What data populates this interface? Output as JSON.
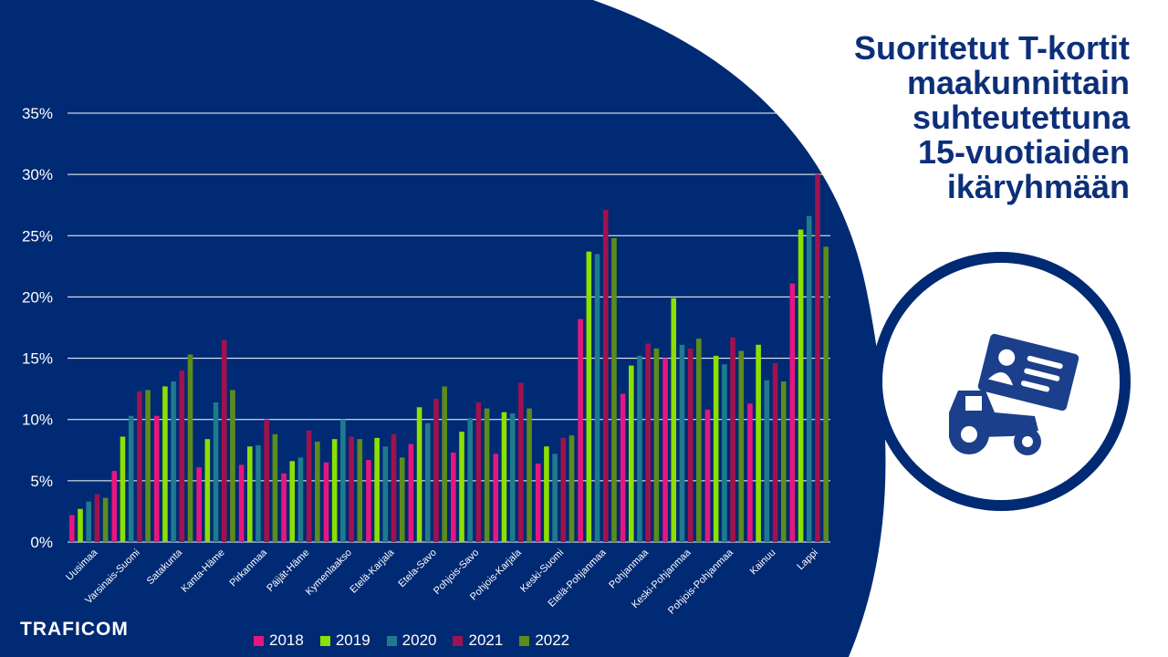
{
  "title_lines": [
    "Suoritetut T-kortit",
    "maakunnittain",
    "suhteutettuna",
    "15-vuotiaiden",
    "ikäryhmään"
  ],
  "logo": "TRAFICOM",
  "icons": [
    "tractor-icon",
    "id-card-icon"
  ],
  "colors": {
    "background_dark": "#002a73",
    "title_text": "#0d2f7a",
    "grid": "#ffffff"
  },
  "chart_data": {
    "type": "bar",
    "categories": [
      "Uusimaa",
      "Varsinais-Suomi",
      "Satakunta",
      "Kanta-Häme",
      "Pirkanmaa",
      "Päijät-Häme",
      "Kymenlaakso",
      "Etelä-Karjala",
      "Etela-Savo",
      "Pohjois-Savo",
      "Pohjois-Karjala",
      "Keski-Suomi",
      "Etelä-Pohjanmaa",
      "Pohjanmaa",
      "Keski-Pohjanmaa",
      "Pohjois-Pohjanmaa",
      "Kainuu",
      "Lappi"
    ],
    "series": [
      {
        "name": "2018",
        "color": "#e5177f",
        "values": [
          2.2,
          5.8,
          10.3,
          6.1,
          6.3,
          5.6,
          6.5,
          6.7,
          8.0,
          7.3,
          7.2,
          6.4,
          18.2,
          12.1,
          15.0,
          10.8,
          11.3,
          21.1
        ]
      },
      {
        "name": "2019",
        "color": "#8ce000",
        "values": [
          2.7,
          8.6,
          12.7,
          8.4,
          7.8,
          6.6,
          8.4,
          8.5,
          11.0,
          9.0,
          10.6,
          7.8,
          23.7,
          14.4,
          19.9,
          15.2,
          16.1,
          25.5
        ]
      },
      {
        "name": "2020",
        "color": "#1e7b8e",
        "values": [
          3.3,
          10.3,
          13.1,
          11.4,
          7.9,
          6.9,
          10.0,
          7.8,
          9.7,
          10.1,
          10.5,
          7.2,
          23.5,
          15.2,
          16.1,
          14.5,
          13.2,
          26.6
        ]
      },
      {
        "name": "2021",
        "color": "#a0124e",
        "values": [
          3.9,
          12.3,
          14.0,
          16.5,
          10.0,
          9.1,
          8.6,
          8.8,
          11.7,
          11.4,
          13.0,
          8.5,
          27.1,
          16.2,
          15.8,
          16.7,
          14.6,
          30.0
        ]
      },
      {
        "name": "2022",
        "color": "#5d8c1c",
        "values": [
          3.6,
          12.4,
          15.3,
          12.4,
          8.8,
          8.2,
          8.4,
          6.9,
          12.7,
          10.9,
          10.9,
          8.7,
          24.8,
          15.8,
          16.6,
          15.6,
          13.1,
          24.1
        ]
      }
    ],
    "y_ticks": [
      "0%",
      "5%",
      "10%",
      "15%",
      "20%",
      "25%",
      "30%",
      "35%"
    ],
    "ylim": [
      0,
      35
    ],
    "grid": true,
    "legend_position": "bottom"
  }
}
